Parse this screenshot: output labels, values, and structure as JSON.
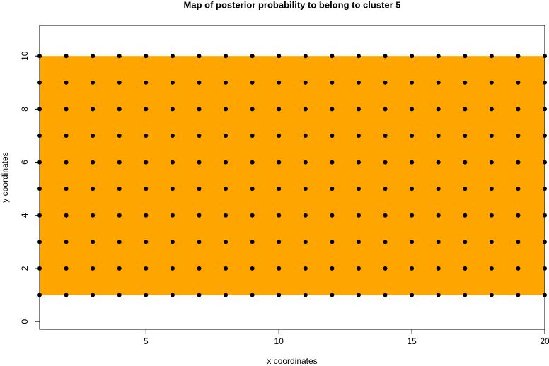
{
  "chart_data": {
    "type": "scatter",
    "title": "Map of posterior probability to belong to cluster  5",
    "xlabel": "x coordinates",
    "ylabel": "y coordinates",
    "color": "#000000",
    "region_color": "#ffa500",
    "xlim": [
      1,
      20
    ],
    "ylim": [
      -0.29,
      11.15
    ],
    "xticks": [
      5,
      10,
      15,
      20
    ],
    "yticks": [
      0,
      2,
      4,
      6,
      8,
      10
    ],
    "x": [
      1,
      2,
      3,
      4,
      5,
      6,
      7,
      8,
      9,
      10,
      11,
      12,
      13,
      14,
      15,
      16,
      17,
      18,
      19,
      20,
      1,
      2,
      3,
      4,
      5,
      6,
      7,
      8,
      9,
      10,
      11,
      12,
      13,
      14,
      15,
      16,
      17,
      18,
      19,
      20,
      1,
      2,
      3,
      4,
      5,
      6,
      7,
      8,
      9,
      10,
      11,
      12,
      13,
      14,
      15,
      16,
      17,
      18,
      19,
      20,
      1,
      2,
      3,
      4,
      5,
      6,
      7,
      8,
      9,
      10,
      11,
      12,
      13,
      14,
      15,
      16,
      17,
      18,
      19,
      20,
      1,
      2,
      3,
      4,
      5,
      6,
      7,
      8,
      9,
      10,
      11,
      12,
      13,
      14,
      15,
      16,
      17,
      18,
      19,
      20,
      1,
      2,
      3,
      4,
      5,
      6,
      7,
      8,
      9,
      10,
      11,
      12,
      13,
      14,
      15,
      16,
      17,
      18,
      19,
      20,
      1,
      2,
      3,
      4,
      5,
      6,
      7,
      8,
      9,
      10,
      11,
      12,
      13,
      14,
      15,
      16,
      17,
      18,
      19,
      20,
      1,
      2,
      3,
      4,
      5,
      6,
      7,
      8,
      9,
      10,
      11,
      12,
      13,
      14,
      15,
      16,
      17,
      18,
      19,
      20,
      1,
      2,
      3,
      4,
      5,
      6,
      7,
      8,
      9,
      10,
      11,
      12,
      13,
      14,
      15,
      16,
      17,
      18,
      19,
      20,
      1,
      2,
      3,
      4,
      5,
      6,
      7,
      8,
      9,
      10,
      11,
      12,
      13,
      14,
      15,
      16,
      17,
      18,
      19,
      20
    ],
    "y": [
      1,
      1,
      1,
      1,
      1,
      1,
      1,
      1,
      1,
      1,
      1,
      1,
      1,
      1,
      1,
      1,
      1,
      1,
      1,
      1,
      2,
      2,
      2,
      2,
      2,
      2,
      2,
      2,
      2,
      2,
      2,
      2,
      2,
      2,
      2,
      2,
      2,
      2,
      2,
      2,
      3,
      3,
      3,
      3,
      3,
      3,
      3,
      3,
      3,
      3,
      3,
      3,
      3,
      3,
      3,
      3,
      3,
      3,
      3,
      3,
      4,
      4,
      4,
      4,
      4,
      4,
      4,
      4,
      4,
      4,
      4,
      4,
      4,
      4,
      4,
      4,
      4,
      4,
      4,
      4,
      5,
      5,
      5,
      5,
      5,
      5,
      5,
      5,
      5,
      5,
      5,
      5,
      5,
      5,
      5,
      5,
      5,
      5,
      5,
      5,
      6,
      6,
      6,
      6,
      6,
      6,
      6,
      6,
      6,
      6,
      6,
      6,
      6,
      6,
      6,
      6,
      6,
      6,
      6,
      6,
      7,
      7,
      7,
      7,
      7,
      7,
      7,
      7,
      7,
      7,
      7,
      7,
      7,
      7,
      7,
      7,
      7,
      7,
      7,
      7,
      8,
      8,
      8,
      8,
      8,
      8,
      8,
      8,
      8,
      8,
      8,
      8,
      8,
      8,
      8,
      8,
      8,
      8,
      8,
      8,
      9,
      9,
      9,
      9,
      9,
      9,
      9,
      9,
      9,
      9,
      9,
      9,
      9,
      9,
      9,
      9,
      9,
      9,
      9,
      9,
      10,
      10,
      10,
      10,
      10,
      10,
      10,
      10,
      10,
      10,
      10,
      10,
      10,
      10,
      10,
      10,
      10,
      10,
      10,
      10
    ]
  }
}
